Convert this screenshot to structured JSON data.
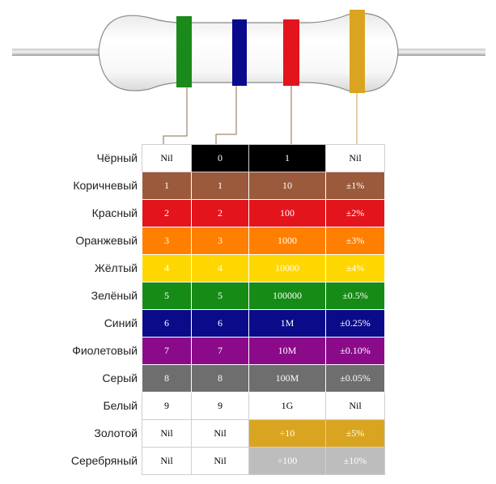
{
  "resistor": {
    "band_colors": [
      "#1a8a1a",
      "#0a0a8c",
      "#e3141c",
      "#d9a521"
    ]
  },
  "rows": [
    {
      "name": "Чёрный",
      "color": "#000000",
      "text": "#ffffff",
      "band1": "Nil",
      "band2": "0",
      "multiplier": "1",
      "tolerance": "Nil",
      "bg1": "#ffffff",
      "t1": "#000000",
      "bg4": "#ffffff",
      "t4": "#000000",
      "bg3": "#000000",
      "t3": "#ffffff"
    },
    {
      "name": "Коричневый",
      "color": "#9c5a3c",
      "text": "#ffffff",
      "band1": "1",
      "band2": "1",
      "multiplier": "10",
      "tolerance": "±1%"
    },
    {
      "name": "Красный",
      "color": "#e3141c",
      "text": "#ffffff",
      "band1": "2",
      "band2": "2",
      "multiplier": "100",
      "tolerance": "±2%"
    },
    {
      "name": "Оранжевый",
      "color": "#ff7f00",
      "text": "#ffffff",
      "band1": "3",
      "band2": "3",
      "multiplier": "1000",
      "tolerance": "±3%"
    },
    {
      "name": "Жёлтый",
      "color": "#ffd700",
      "text": "#ffffff",
      "band1": "4",
      "band2": "4",
      "multiplier": "10000",
      "tolerance": "±4%"
    },
    {
      "name": "Зелёный",
      "color": "#168c16",
      "text": "#ffffff",
      "band1": "5",
      "band2": "5",
      "multiplier": "100000",
      "tolerance": "±0.5%"
    },
    {
      "name": "Синий",
      "color": "#0b0b8a",
      "text": "#ffffff",
      "band1": "6",
      "band2": "6",
      "multiplier": "1M",
      "tolerance": "±0.25%"
    },
    {
      "name": "Фиолетовый",
      "color": "#8a0a8a",
      "text": "#ffffff",
      "band1": "7",
      "band2": "7",
      "multiplier": "10M",
      "tolerance": "±0.10%"
    },
    {
      "name": "Серый",
      "color": "#6e6e6e",
      "text": "#ffffff",
      "band1": "8",
      "band2": "8",
      "multiplier": "100M",
      "tolerance": "±0.05%"
    },
    {
      "name": "Белый",
      "color": "#ffffff",
      "text": "#000000",
      "band1": "9",
      "band2": "9",
      "multiplier": "1G",
      "tolerance": "Nil"
    },
    {
      "name": "Золотой",
      "color": "#ffffff",
      "text": "#000000",
      "band1": "Nil",
      "band2": "Nil",
      "multiplier": "÷10",
      "tolerance": "±5%",
      "bg3": "#d9a521",
      "t3": "#ffffff",
      "bg4": "#d9a521",
      "t4": "#ffffff"
    },
    {
      "name": "Серебряный",
      "color": "#ffffff",
      "text": "#000000",
      "band1": "Nil",
      "band2": "Nil",
      "multiplier": "÷100",
      "tolerance": "±10%",
      "bg3": "#bdbdbd",
      "t3": "#ffffff",
      "bg4": "#bdbdbd",
      "t4": "#ffffff"
    }
  ]
}
